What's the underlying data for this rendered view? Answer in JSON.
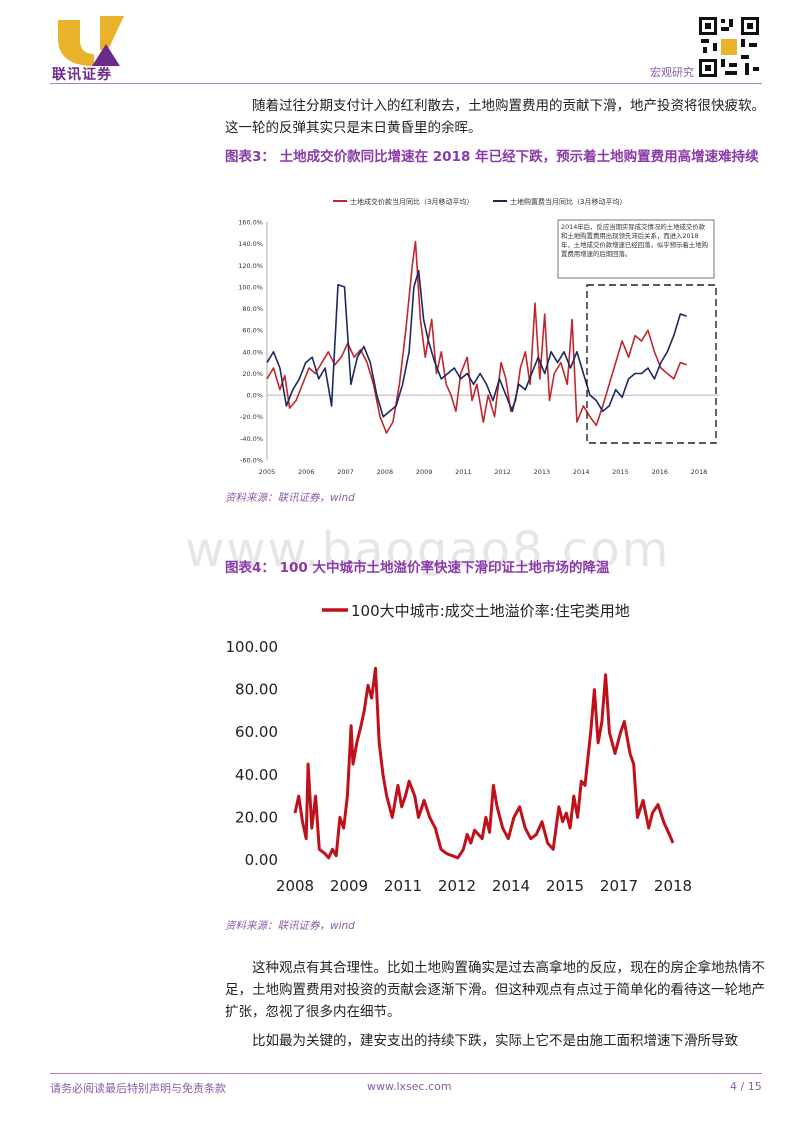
{
  "header": {
    "logo_text": "联讯证券",
    "section": "宏观研究"
  },
  "body": {
    "para1": "随着过往分期支付计入的红利散去，土地购置费用的贡献下滑，地产投资将很快疲软。这一轮的反弹其实只是末日黄昏里的余晖。",
    "para2": "这种观点有其合理性。比如土地购置确实是过去高拿地的反应，现在的房企拿地热情不足，土地购置费用对投资的贡献会逐渐下滑。但这种观点有点过于简单化的看待这一轮地产扩张，忽视了很多内在细节。",
    "para3": "比如最为关键的，建安支出的持续下跌，实际上它不是由施工面积增速下滑所导致"
  },
  "figure3": {
    "title": "图表3：  土地成交价款同比增速在 2018 年已经下跌，预示着土地购置费用高增速难持续",
    "source": "资料来源：联讯证券，wind"
  },
  "figure4": {
    "title": "图表4：  100 大中城市土地溢价率快速下滑印证土地市场的降温",
    "source": "资料来源：联讯证券，wind"
  },
  "watermark": "www.baogao8.com",
  "footer": {
    "disclaimer": "请务必阅读最后特别声明与免责条款",
    "url": "www.lxsec.com",
    "page": "4 / 15"
  },
  "chart_data": [
    {
      "type": "line",
      "yticks": [
        "160.0%",
        "140.0%",
        "120.0%",
        "100.0%",
        "80.0%",
        "60.0%",
        "40.0%",
        "20.0%",
        "0.0%",
        "-20.0%",
        "-40.0%",
        "-60.0%"
      ],
      "ylim": [
        -60,
        160
      ],
      "xlim": [
        2005,
        2019
      ],
      "xticks": [
        "2005",
        "2006",
        "2007",
        "2008",
        "2009",
        "2011",
        "2012",
        "2013",
        "2014",
        "2015",
        "2016",
        "2018"
      ],
      "annotation": "2014年后，反应当期实际成交情况的土地成交价款和土地购置费用出现领先滞后关系，而进入2018年，土地成交价款增速已经回落，似乎预示着土地购置费用增速的后期回落。",
      "series": [
        {
          "name": "土地成交价款当月同比（3月移动平均）",
          "color": "#c0272d",
          "points": [
            [
              2005.0,
              15
            ],
            [
              2005.2,
              25
            ],
            [
              2005.4,
              5
            ],
            [
              2005.55,
              18
            ],
            [
              2005.7,
              -12
            ],
            [
              2005.9,
              -5
            ],
            [
              2006.1,
              10
            ],
            [
              2006.3,
              25
            ],
            [
              2006.5,
              20
            ],
            [
              2006.7,
              30
            ],
            [
              2006.9,
              40
            ],
            [
              2007.1,
              28
            ],
            [
              2007.3,
              35
            ],
            [
              2007.5,
              48
            ],
            [
              2007.7,
              35
            ],
            [
              2007.9,
              42
            ],
            [
              2008.1,
              30
            ],
            [
              2008.3,
              10
            ],
            [
              2008.5,
              -20
            ],
            [
              2008.7,
              -35
            ],
            [
              2008.9,
              -25
            ],
            [
              2009.1,
              10
            ],
            [
              2009.3,
              60
            ],
            [
              2009.5,
              120
            ],
            [
              2009.6,
              142
            ],
            [
              2009.75,
              70
            ],
            [
              2009.9,
              35
            ],
            [
              2010.1,
              70
            ],
            [
              2010.25,
              20
            ],
            [
              2010.4,
              40
            ],
            [
              2010.55,
              10
            ],
            [
              2010.7,
              0
            ],
            [
              2010.85,
              -15
            ],
            [
              2011.0,
              20
            ],
            [
              2011.2,
              35
            ],
            [
              2011.35,
              -5
            ],
            [
              2011.5,
              10
            ],
            [
              2011.7,
              -25
            ],
            [
              2011.85,
              0
            ],
            [
              2012.05,
              -20
            ],
            [
              2012.25,
              30
            ],
            [
              2012.4,
              15
            ],
            [
              2012.55,
              -15
            ],
            [
              2012.7,
              -5
            ],
            [
              2012.85,
              25
            ],
            [
              2013.0,
              40
            ],
            [
              2013.15,
              10
            ],
            [
              2013.3,
              85
            ],
            [
              2013.45,
              15
            ],
            [
              2013.6,
              75
            ],
            [
              2013.75,
              -5
            ],
            [
              2013.9,
              20
            ],
            [
              2014.1,
              30
            ],
            [
              2014.3,
              10
            ],
            [
              2014.45,
              70
            ],
            [
              2014.6,
              -25
            ],
            [
              2014.8,
              -10
            ],
            [
              2015.0,
              -20
            ],
            [
              2015.2,
              -28
            ],
            [
              2015.4,
              -10
            ],
            [
              2015.6,
              10
            ],
            [
              2015.8,
              30
            ],
            [
              2016.0,
              50
            ],
            [
              2016.2,
              35
            ],
            [
              2016.4,
              55
            ],
            [
              2016.6,
              50
            ],
            [
              2016.8,
              60
            ],
            [
              2017.0,
              40
            ],
            [
              2017.2,
              25
            ],
            [
              2017.4,
              20
            ],
            [
              2017.6,
              15
            ],
            [
              2017.8,
              30
            ],
            [
              2018.0,
              28
            ]
          ]
        },
        {
          "name": "土地购置费当月同比（3月移动平均）",
          "color": "#1b2a5c",
          "points": [
            [
              2005.0,
              30
            ],
            [
              2005.2,
              40
            ],
            [
              2005.4,
              25
            ],
            [
              2005.6,
              -10
            ],
            [
              2005.8,
              5
            ],
            [
              2006.0,
              15
            ],
            [
              2006.2,
              30
            ],
            [
              2006.4,
              35
            ],
            [
              2006.6,
              15
            ],
            [
              2006.8,
              25
            ],
            [
              2007.0,
              -10
            ],
            [
              2007.2,
              102
            ],
            [
              2007.4,
              100
            ],
            [
              2007.6,
              10
            ],
            [
              2007.8,
              35
            ],
            [
              2008.0,
              45
            ],
            [
              2008.2,
              30
            ],
            [
              2008.4,
              0
            ],
            [
              2008.6,
              -20
            ],
            [
              2008.8,
              -15
            ],
            [
              2009.0,
              -10
            ],
            [
              2009.2,
              10
            ],
            [
              2009.4,
              40
            ],
            [
              2009.55,
              100
            ],
            [
              2009.7,
              115
            ],
            [
              2009.85,
              70
            ],
            [
              2010.0,
              50
            ],
            [
              2010.2,
              30
            ],
            [
              2010.4,
              15
            ],
            [
              2010.6,
              20
            ],
            [
              2010.8,
              25
            ],
            [
              2011.0,
              15
            ],
            [
              2011.2,
              20
            ],
            [
              2011.4,
              10
            ],
            [
              2011.6,
              20
            ],
            [
              2011.8,
              10
            ],
            [
              2012.0,
              -5
            ],
            [
              2012.2,
              15
            ],
            [
              2012.4,
              0
            ],
            [
              2012.6,
              -15
            ],
            [
              2012.8,
              10
            ],
            [
              2013.0,
              5
            ],
            [
              2013.2,
              20
            ],
            [
              2013.4,
              35
            ],
            [
              2013.6,
              20
            ],
            [
              2013.8,
              40
            ],
            [
              2014.0,
              30
            ],
            [
              2014.2,
              40
            ],
            [
              2014.4,
              25
            ],
            [
              2014.6,
              40
            ],
            [
              2014.8,
              20
            ],
            [
              2015.0,
              0
            ],
            [
              2015.2,
              -5
            ],
            [
              2015.4,
              -15
            ],
            [
              2015.6,
              -10
            ],
            [
              2015.8,
              5
            ],
            [
              2016.0,
              -2
            ],
            [
              2016.2,
              15
            ],
            [
              2016.4,
              20
            ],
            [
              2016.6,
              20
            ],
            [
              2016.8,
              25
            ],
            [
              2017.0,
              15
            ],
            [
              2017.2,
              30
            ],
            [
              2017.4,
              40
            ],
            [
              2017.6,
              55
            ],
            [
              2017.8,
              75
            ],
            [
              2018.0,
              73
            ]
          ]
        }
      ]
    },
    {
      "type": "line",
      "legend": "100大中城市:成交土地溢价率:住宅类用地",
      "yticks": [
        "100.00",
        "80.00",
        "60.00",
        "40.00",
        "20.00",
        "0.00"
      ],
      "ylim": [
        0,
        100
      ],
      "xticks": [
        "2008",
        "2009",
        "2011",
        "2012",
        "2014",
        "2015",
        "2017",
        "2018"
      ],
      "series": [
        {
          "name": "100大中城市:成交土地溢价率:住宅类用地",
          "color": "#c0111a",
          "points": [
            [
              2008.0,
              22
            ],
            [
              2008.1,
              30
            ],
            [
              2008.2,
              18
            ],
            [
              2008.3,
              10
            ],
            [
              2008.35,
              45
            ],
            [
              2008.45,
              15
            ],
            [
              2008.55,
              30
            ],
            [
              2008.65,
              5
            ],
            [
              2008.8,
              3
            ],
            [
              2008.9,
              1
            ],
            [
              2009.0,
              5
            ],
            [
              2009.1,
              2
            ],
            [
              2009.2,
              20
            ],
            [
              2009.3,
              15
            ],
            [
              2009.4,
              30
            ],
            [
              2009.5,
              63
            ],
            [
              2009.55,
              45
            ],
            [
              2009.65,
              55
            ],
            [
              2009.75,
              62
            ],
            [
              2009.85,
              70
            ],
            [
              2009.95,
              82
            ],
            [
              2010.05,
              76
            ],
            [
              2010.15,
              90
            ],
            [
              2010.25,
              55
            ],
            [
              2010.35,
              40
            ],
            [
              2010.45,
              30
            ],
            [
              2010.6,
              20
            ],
            [
              2010.75,
              35
            ],
            [
              2010.85,
              25
            ],
            [
              2010.95,
              30
            ],
            [
              2011.05,
              37
            ],
            [
              2011.2,
              30
            ],
            [
              2011.3,
              20
            ],
            [
              2011.45,
              28
            ],
            [
              2011.6,
              20
            ],
            [
              2011.75,
              15
            ],
            [
              2011.9,
              5
            ],
            [
              2012.05,
              3
            ],
            [
              2012.2,
              2
            ],
            [
              2012.35,
              1
            ],
            [
              2012.5,
              5
            ],
            [
              2012.6,
              12
            ],
            [
              2012.7,
              8
            ],
            [
              2012.8,
              14
            ],
            [
              2012.9,
              12
            ],
            [
              2013.0,
              10
            ],
            [
              2013.1,
              20
            ],
            [
              2013.2,
              13
            ],
            [
              2013.3,
              35
            ],
            [
              2013.4,
              25
            ],
            [
              2013.55,
              15
            ],
            [
              2013.7,
              10
            ],
            [
              2013.85,
              20
            ],
            [
              2014.0,
              25
            ],
            [
              2014.15,
              15
            ],
            [
              2014.3,
              10
            ],
            [
              2014.45,
              12
            ],
            [
              2014.6,
              18
            ],
            [
              2014.75,
              8
            ],
            [
              2014.9,
              5
            ],
            [
              2015.05,
              25
            ],
            [
              2015.15,
              18
            ],
            [
              2015.25,
              22
            ],
            [
              2015.35,
              15
            ],
            [
              2015.45,
              30
            ],
            [
              2015.55,
              20
            ],
            [
              2015.65,
              37
            ],
            [
              2015.75,
              35
            ],
            [
              2015.9,
              60
            ],
            [
              2016.0,
              80
            ],
            [
              2016.1,
              55
            ],
            [
              2016.2,
              65
            ],
            [
              2016.3,
              87
            ],
            [
              2016.4,
              60
            ],
            [
              2016.55,
              50
            ],
            [
              2016.7,
              60
            ],
            [
              2016.8,
              65
            ],
            [
              2016.95,
              50
            ],
            [
              2017.05,
              45
            ],
            [
              2017.15,
              20
            ],
            [
              2017.3,
              28
            ],
            [
              2017.45,
              15
            ],
            [
              2017.55,
              22
            ],
            [
              2017.7,
              26
            ],
            [
              2017.85,
              18
            ],
            [
              2018.0,
              12
            ],
            [
              2018.1,
              8
            ]
          ]
        }
      ]
    }
  ]
}
